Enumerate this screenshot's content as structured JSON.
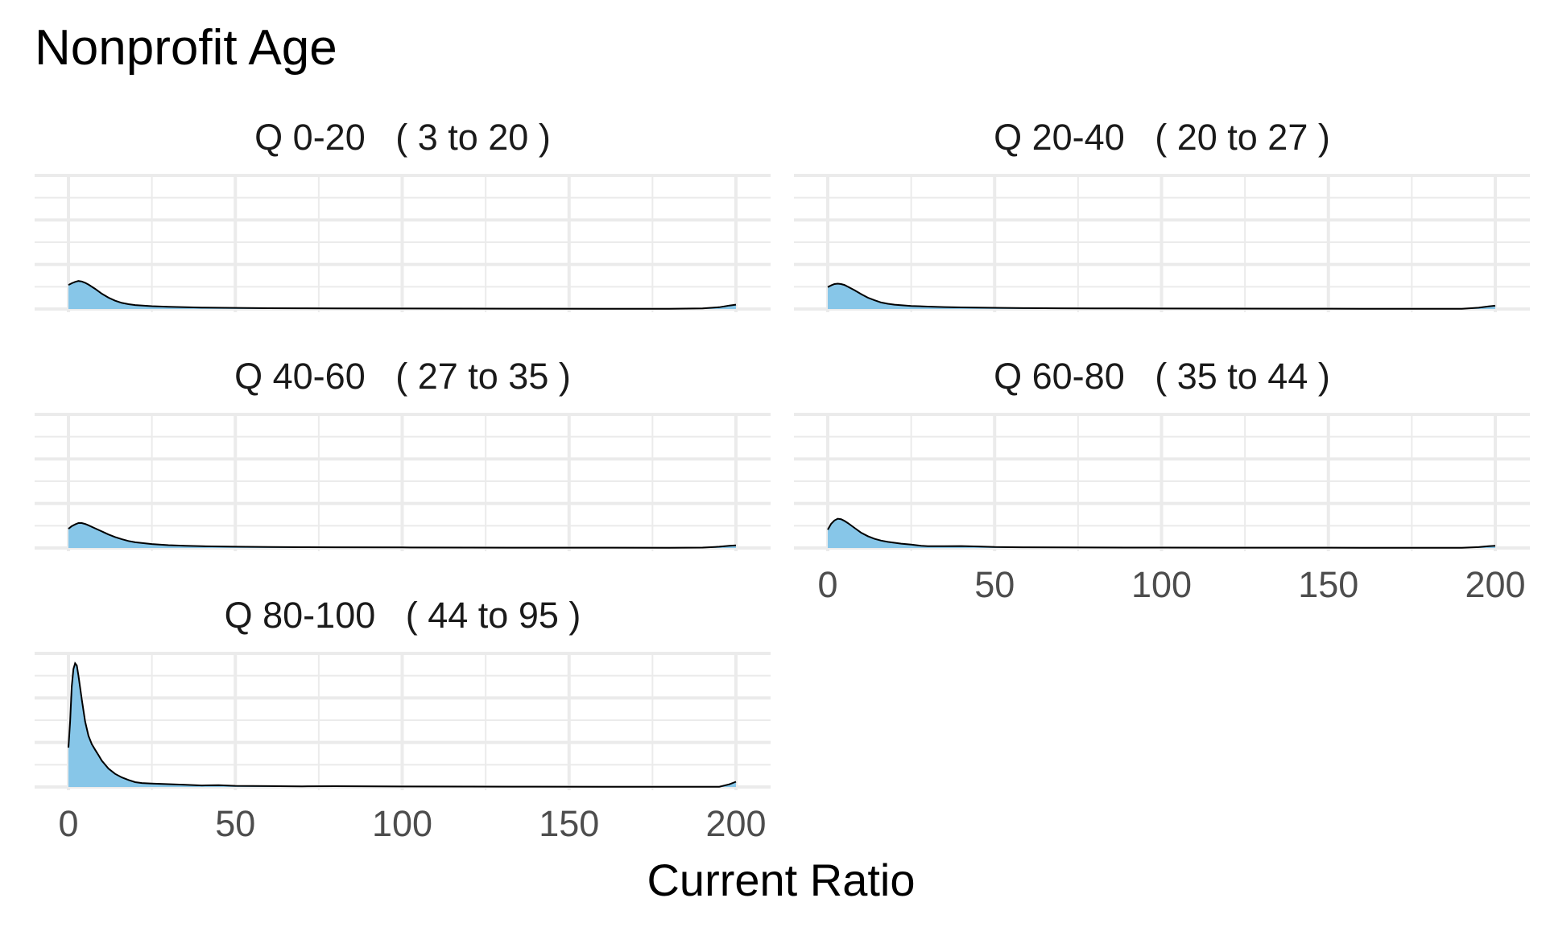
{
  "chart_data": {
    "type": "area",
    "title": "Nonprofit Age",
    "xlabel": "Current Ratio",
    "ylabel": "",
    "xlim": [
      0,
      200
    ],
    "x_ticks": [
      0,
      50,
      100,
      150,
      200
    ],
    "x_tick_labels": [
      "0",
      "50",
      "100",
      "150",
      "200"
    ],
    "grid": true,
    "fill_color": "#87c6e8",
    "line_color": "#000000",
    "grid_color": "#ebebeb",
    "panels": [
      {
        "label": "Q 0-20   ( 3 to 20 )",
        "x": [
          0,
          1,
          2,
          3,
          4,
          5,
          6,
          8,
          10,
          12,
          14,
          16,
          18,
          20,
          25,
          30,
          35,
          40,
          50,
          60,
          70,
          80,
          100,
          120,
          140,
          160,
          180,
          190,
          195,
          198,
          200
        ],
        "density": [
          0.055,
          0.059,
          0.062,
          0.064,
          0.063,
          0.06,
          0.056,
          0.046,
          0.035,
          0.026,
          0.019,
          0.014,
          0.011,
          0.009,
          0.0065,
          0.005,
          0.004,
          0.0033,
          0.0025,
          0.0019,
          0.0016,
          0.0014,
          0.0011,
          0.0009,
          0.0007,
          0.0006,
          0.0005,
          0.0012,
          0.004,
          0.008,
          0.01
        ]
      },
      {
        "label": "Q 20-40   ( 20 to 27 )",
        "x": [
          0,
          1,
          2,
          3,
          4,
          5,
          6,
          8,
          10,
          12,
          14,
          16,
          18,
          20,
          25,
          30,
          35,
          40,
          50,
          60,
          70,
          80,
          100,
          120,
          140,
          160,
          180,
          190,
          195,
          198,
          200
        ],
        "density": [
          0.05,
          0.054,
          0.057,
          0.058,
          0.057,
          0.055,
          0.051,
          0.043,
          0.034,
          0.026,
          0.02,
          0.015,
          0.012,
          0.01,
          0.007,
          0.0055,
          0.0045,
          0.0036,
          0.0027,
          0.002,
          0.0017,
          0.0014,
          0.0011,
          0.0009,
          0.0007,
          0.0006,
          0.0005,
          0.0006,
          0.003,
          0.006,
          0.0075
        ]
      },
      {
        "label": "Q 40-60   ( 27 to 35 )",
        "x": [
          0,
          1,
          2,
          3,
          4,
          5,
          6,
          8,
          10,
          12,
          14,
          16,
          18,
          20,
          25,
          30,
          35,
          40,
          50,
          60,
          70,
          80,
          100,
          120,
          140,
          160,
          180,
          190,
          195,
          198,
          200
        ],
        "density": [
          0.044,
          0.05,
          0.054,
          0.057,
          0.057,
          0.055,
          0.052,
          0.045,
          0.038,
          0.031,
          0.025,
          0.02,
          0.016,
          0.013,
          0.009,
          0.0065,
          0.005,
          0.004,
          0.003,
          0.0023,
          0.0019,
          0.0016,
          0.0012,
          0.001,
          0.0008,
          0.0007,
          0.0006,
          0.0009,
          0.003,
          0.005,
          0.006
        ]
      },
      {
        "label": "Q 60-80   ( 35 to 44 )",
        "x": [
          0,
          1,
          2,
          3,
          4,
          5,
          6,
          8,
          10,
          12,
          14,
          16,
          18,
          20,
          22,
          25,
          28,
          30,
          35,
          40,
          45,
          50,
          55,
          60,
          70,
          80,
          100,
          120,
          140,
          160,
          180,
          190,
          195,
          198,
          200
        ],
        "density": [
          0.042,
          0.055,
          0.063,
          0.067,
          0.066,
          0.062,
          0.057,
          0.046,
          0.035,
          0.027,
          0.021,
          0.017,
          0.014,
          0.012,
          0.01,
          0.008,
          0.005,
          0.004,
          0.0042,
          0.0045,
          0.0035,
          0.0022,
          0.0018,
          0.0016,
          0.0012,
          0.0011,
          0.0009,
          0.0008,
          0.0007,
          0.0006,
          0.0005,
          0.0005,
          0.002,
          0.004,
          0.005
        ]
      },
      {
        "label": "Q 80-100   ( 44 to 95 )",
        "x": [
          0,
          0.5,
          1,
          1.5,
          2,
          2.5,
          3,
          4,
          5,
          6,
          7,
          8,
          9,
          10,
          12,
          14,
          16,
          18,
          20,
          22,
          25,
          30,
          35,
          40,
          45,
          50,
          60,
          70,
          80,
          100,
          120,
          140,
          160,
          180,
          195,
          198,
          200
        ],
        "density": [
          0.09,
          0.15,
          0.23,
          0.27,
          0.283,
          0.278,
          0.255,
          0.2,
          0.15,
          0.117,
          0.098,
          0.085,
          0.073,
          0.06,
          0.042,
          0.03,
          0.022,
          0.016,
          0.011,
          0.009,
          0.008,
          0.0065,
          0.005,
          0.0035,
          0.004,
          0.0025,
          0.002,
          0.0014,
          0.0018,
          0.0011,
          0.0009,
          0.0007,
          0.0006,
          0.0005,
          0.0005,
          0.006,
          0.012
        ]
      }
    ]
  }
}
